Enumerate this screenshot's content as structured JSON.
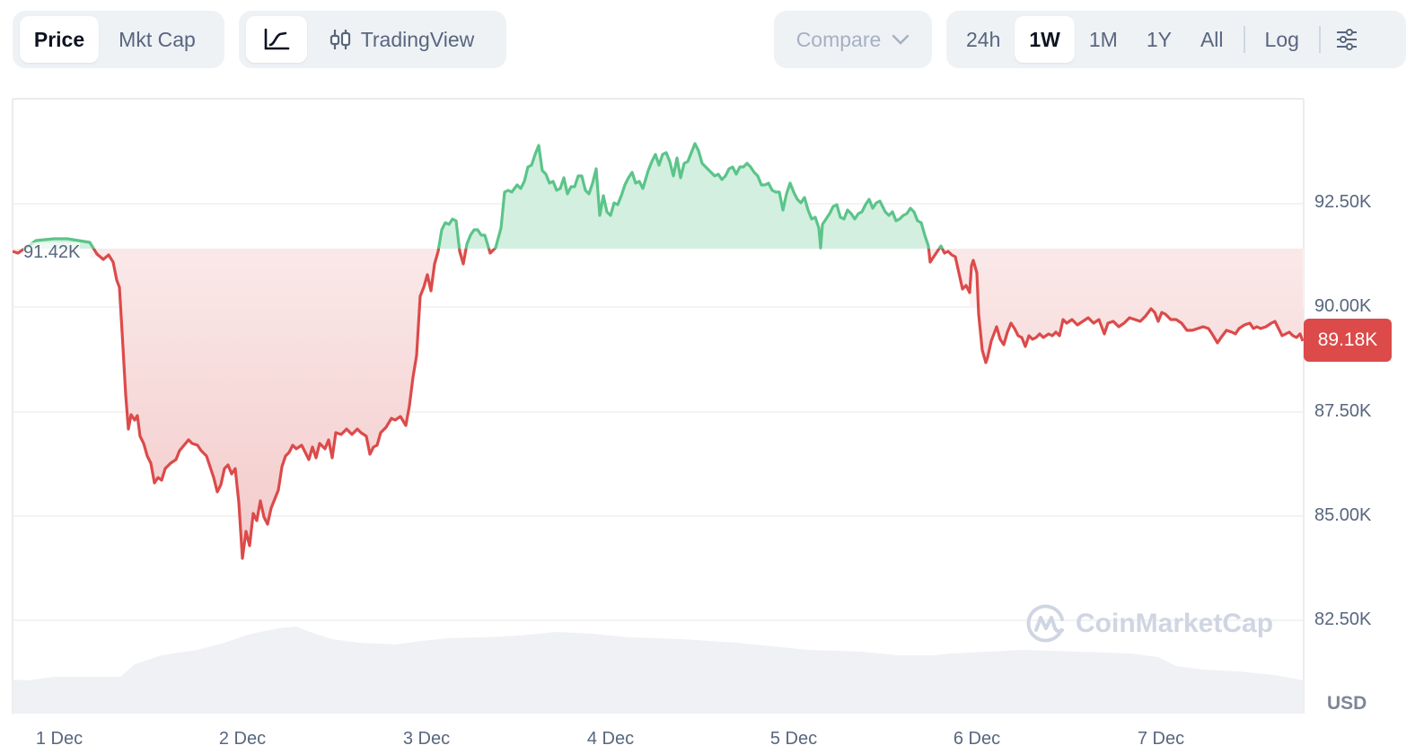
{
  "toolbar": {
    "type_toggle": {
      "price": "Price",
      "mkt_cap": "Mkt Cap",
      "selected": "Price"
    },
    "view_toggle": {
      "line_icon": "line-chart-icon",
      "tradingview_icon": "candlestick-icon",
      "tradingview": "TradingView",
      "selected": "line"
    },
    "compare": {
      "label": "Compare",
      "icon": "chevron-down-icon"
    },
    "ranges": [
      "24h",
      "1W",
      "1M",
      "1Y",
      "All"
    ],
    "selected_range": "1W",
    "log": "Log",
    "settings_icon": "sliders-icon"
  },
  "chart_data": {
    "type": "line",
    "title": "",
    "xlabel": "",
    "ylabel": "USD",
    "currency_label": "USD",
    "x_ticks": [
      "1 Dec",
      "2 Dec",
      "3 Dec",
      "4 Dec",
      "5 Dec",
      "6 Dec",
      "7 Dec"
    ],
    "y_ticks": [
      "92.50K",
      "90.00K",
      "87.50K",
      "85.00K",
      "82.50K"
    ],
    "ylim": [
      81500,
      94700
    ],
    "grid": true,
    "baseline_value": 91420,
    "baseline_label": "91.42K",
    "last_value": 89180,
    "last_label": "89.18K",
    "colors": {
      "up": "#5bc48a",
      "down": "#dc4a4a",
      "up_fill": "#d3efdf",
      "down_fill": "#fbe9e9",
      "volume": "#eff1f5",
      "grid": "#efefef"
    },
    "series": [
      {
        "name": "Price",
        "x": [
          "1 Dec 00:00",
          "1 Dec 06:00",
          "1 Dec 12:00",
          "1 Dec 18:00",
          "2 Dec 00:00",
          "2 Dec 06:00",
          "2 Dec 12:00",
          "2 Dec 18:00",
          "3 Dec 00:00",
          "3 Dec 06:00",
          "3 Dec 12:00",
          "3 Dec 18:00",
          "4 Dec 00:00",
          "4 Dec 06:00",
          "4 Dec 12:00",
          "4 Dec 18:00",
          "5 Dec 00:00",
          "5 Dec 06:00",
          "5 Dec 12:00",
          "5 Dec 18:00",
          "6 Dec 00:00",
          "6 Dec 06:00",
          "6 Dec 12:00",
          "6 Dec 18:00",
          "7 Dec 00:00",
          "7 Dec 06:00",
          "7 Dec 12:00",
          "7 Dec 18:00"
        ],
        "values": [
          91500,
          91300,
          87200,
          86100,
          86700,
          85300,
          86600,
          87000,
          87200,
          90900,
          91800,
          93200,
          92800,
          92300,
          93300,
          93000,
          92600,
          92400,
          92300,
          91500,
          90700,
          89300,
          89700,
          89700,
          89900,
          89700,
          89500,
          89200
        ]
      }
    ],
    "volume_note": "Volume area beneath price line (no axis)"
  },
  "watermark": "CoinMarketCap",
  "line_points": "14,280 20,282 40,268 60,266 75,266 100,270 108,283 115,289 121,284 126,292 130,312 133,320 136,370 140,440 143,478 146,462 150,468 153,463 156,486 160,494 164,508 168,516 172,538 176,532 180,535 184,522 190,516 196,512 200,502 205,496 210,490 214,494 220,496 224,502 230,508 234,520 238,532 242,548 246,540 250,522 254,518 258,528 262,522 266,560 270,622 274,592 278,608 282,572 286,580 290,558 294,576 298,584 302,566 306,556 310,546 314,520 318,508 322,504 326,496 330,500 336,496 340,504 344,512 348,498 352,510 356,494 362,500 366,490 370,510 374,482 380,484 386,478 392,484 398,478 402,482 408,486 412,506 416,498 420,496 424,482 430,476 436,466 440,468 446,464 452,474 456,452 460,420 464,396 468,330 472,320 476,306 480,324 484,294 488,280 492,256 496,248 500,250 504,244 508,246 512,280 516,294 520,272 524,262 528,256 532,256 536,262 540,262 546,282 552,276 558,254 562,214 566,212 570,214 576,206 580,210 584,202 588,186 592,184 596,172 600,162 604,190 608,194 612,204 616,202 620,212 624,210 628,198 632,216 636,208 640,208 644,196 648,196 652,212 656,216 660,204 664,188 668,240 672,218 676,236 680,240 684,226 688,228 692,218 696,206 700,198 704,192 708,204 712,202 716,210 722,190 726,180 730,172 734,184 738,172 742,170 746,180 750,196 754,176 758,198 762,182 766,180 770,170 774,160 778,168 782,182 786,186 790,190 796,196 800,194 804,200 808,196 812,188 816,186 820,194 824,186 828,186 832,182 836,186 840,192 844,196 848,206 852,206 856,204 860,212 864,214 868,214 872,234 876,216 880,204 884,214 888,222 892,226 896,220 900,234 904,244 908,242 912,254 914,276 916,250 920,244 924,238 928,230 932,228 936,242 940,244 944,234 948,238 952,244 956,238 960,236 964,228 968,222 972,232 976,226 980,224 986,236 990,240 994,236 998,246 1002,244 1006,240 1010,238 1014,232 1018,236 1022,246 1026,248 1030,262 1034,274 1036,292 1040,286 1044,280 1048,274 1052,282 1056,280 1060,284 1064,286 1068,304 1072,322 1076,318 1080,326 1082,296 1084,290 1088,304 1090,350 1094,390 1098,404 1100,398 1104,380 1110,364 1114,378 1118,384 1122,370 1126,360 1130,366 1134,374 1138,376 1142,386 1146,374 1150,378 1154,376 1158,372 1162,376 1168,372 1172,374 1176,370 1180,374 1184,356 1188,360 1194,356 1200,362 1206,358 1212,354 1218,360 1224,356 1230,372 1234,360 1240,358 1246,364 1252,360 1258,354 1264,356 1270,358 1276,352 1282,344 1286,348 1290,358 1294,348 1298,350 1304,356 1310,356 1316,360 1322,368 1328,368 1334,366 1340,364 1346,366 1350,372 1356,382 1360,376 1366,368 1372,370 1376,372 1380,366 1386,362 1392,360 1396,366 1400,364 1404,366 1410,364 1416,360 1420,358 1424,366 1428,374 1432,372 1436,370 1440,374 1444,376 1448,372 1451,380"
}
